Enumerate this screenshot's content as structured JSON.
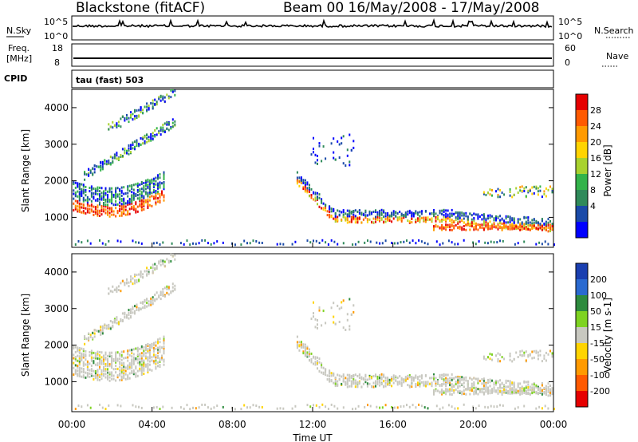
{
  "header": {
    "station": "Blackstone (fitACF)",
    "beam_dates": "Beam 00  16/May/2008 - 17/May/2008"
  },
  "strips": {
    "nsky_label": "N.Sky",
    "nsearch_label": "N.Search",
    "freq_label_line1": "Freq.",
    "freq_label_line2": "[MHz]",
    "nave_label": "Nave",
    "cpid_label": "CPID",
    "cpid_value": "tau (fast) 503",
    "noise_left_ticks": [
      "10^5",
      "10^0"
    ],
    "noise_right_ticks": [
      "10^5",
      "10^0"
    ],
    "freq_left_ticks": [
      "18",
      "8"
    ],
    "nave_right_ticks": [
      "60",
      "0"
    ]
  },
  "colors": {
    "power_scale": [
      "#0000ff",
      "#1a4aa8",
      "#2f8a5a",
      "#33b34a",
      "#a8d22e",
      "#ffd400",
      "#ff9a00",
      "#ff5a00",
      "#e60000"
    ],
    "velocity_scale": [
      "#1a3fb0",
      "#2a6ad0",
      "#2e8b3e",
      "#7ed321",
      "#c8c8c0",
      "#ffd400",
      "#ff9a00",
      "#ff5a00",
      "#e60000"
    ]
  },
  "chart_data": [
    {
      "type": "heatmap",
      "title": "Power",
      "ylabel": "Slant Range [km]",
      "xlabel": "Time UT",
      "x_ticks": [
        "00:00",
        "04:00",
        "08:00",
        "12:00",
        "16:00",
        "20:00",
        "00:00"
      ],
      "y_ticks": [
        1000,
        2000,
        3000,
        4000
      ],
      "ylim": [
        180,
        4500
      ],
      "xlim_hours": [
        0,
        24
      ],
      "colorbar": {
        "label": "Power [dB]",
        "ticks": [
          4,
          8,
          12,
          16,
          20,
          24,
          28
        ]
      }
    },
    {
      "type": "heatmap",
      "title": "Velocity",
      "ylabel": "Slant Range [km]",
      "xlabel": "Time UT",
      "x_ticks": [
        "00:00",
        "04:00",
        "08:00",
        "12:00",
        "16:00",
        "20:00",
        "00:00"
      ],
      "y_ticks": [
        1000,
        2000,
        3000,
        4000
      ],
      "ylim": [
        180,
        4500
      ],
      "xlim_hours": [
        0,
        24
      ],
      "colorbar": {
        "label": "Velocity [m s-1]",
        "ticks": [
          200,
          100,
          50,
          15,
          -15,
          -50,
          -100,
          -200
        ]
      }
    }
  ]
}
